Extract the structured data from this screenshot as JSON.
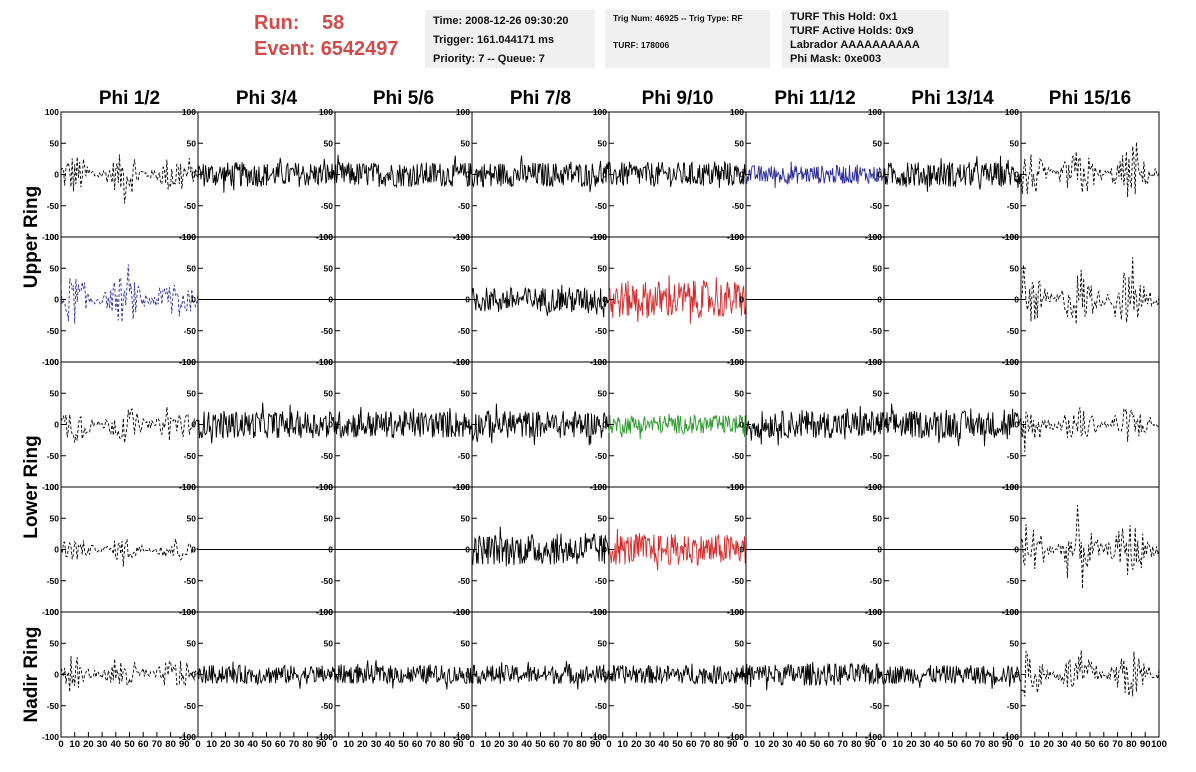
{
  "header": {
    "run_label": "Run:",
    "run_value": "58",
    "event_label": "Event:",
    "event_value": "6542497",
    "time": "Time: 2008-12-26 09:30:20",
    "trigger": "Trigger: 161.044171 ms",
    "priority": "Priority: 7 -- Queue: 7",
    "trig_num": "Trig Num: 46925 -- Trig Type: RF",
    "turf": "TURF: 178006",
    "turf_hold": "TURF This Hold: 0x1",
    "turf_active": "TURF Active Holds: 0x9",
    "labrador": "Labrador AAAAAAAAAA",
    "phi_mask": "Phi Mask: 0xe003"
  },
  "chart_data": {
    "type": "line",
    "columns": [
      "Phi 1/2",
      "Phi 3/4",
      "Phi 5/6",
      "Phi 7/8",
      "Phi 9/10",
      "Phi 11/12",
      "Phi 13/14",
      "Phi 15/16"
    ],
    "row_groups": [
      "Upper Ring",
      "Lower Ring",
      "Nadir Ring"
    ],
    "xlim": [
      0,
      100
    ],
    "ylim": [
      -100,
      100
    ],
    "x_ticks": [
      "0",
      "10",
      "20",
      "30",
      "40",
      "50",
      "60",
      "70",
      "80",
      "90"
    ],
    "x_ticks_last": [
      "0",
      "10",
      "20",
      "30",
      "40",
      "50",
      "60",
      "70",
      "80",
      "90",
      "100"
    ],
    "y_ticks": [
      "100",
      "50",
      "0",
      "-50",
      "-100"
    ],
    "panels": [
      [
        "dash",
        "solid",
        "solid",
        "solid",
        "solid",
        "blue",
        "solid",
        "dash"
      ],
      [
        "bluedash",
        "flat",
        "flat",
        "solid",
        "red",
        "flat",
        "flat",
        "dash"
      ],
      [
        "dash",
        "solid",
        "solid",
        "solid",
        "green",
        "solid",
        "solid",
        "dash"
      ],
      [
        "dash",
        "flat",
        "flat",
        "solid",
        "red",
        "flat",
        "flat",
        "dash"
      ],
      [
        "dash",
        "solid",
        "solid",
        "solid",
        "solid",
        "solid",
        "solid",
        "dash"
      ]
    ],
    "amplitudes": [
      [
        35,
        20,
        20,
        20,
        20,
        15,
        20,
        40
      ],
      [
        40,
        0,
        0,
        20,
        30,
        0,
        0,
        45
      ],
      [
        30,
        22,
        22,
        22,
        15,
        22,
        22,
        30
      ],
      [
        20,
        0,
        0,
        25,
        25,
        0,
        0,
        45
      ],
      [
        28,
        15,
        15,
        15,
        15,
        18,
        15,
        40
      ]
    ],
    "colors": {
      "solid": "#000000",
      "blue": "#2c2c9a",
      "red": "#d42a2a",
      "green": "#2a9a2a",
      "red_title": "#d14b4b"
    }
  }
}
